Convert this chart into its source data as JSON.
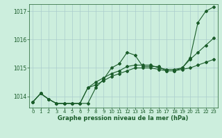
{
  "title": "Graphe pression niveau de la mer (hPa)",
  "bg_color": "#cceedd",
  "grid_color": "#aacccc",
  "line_color": "#1a5c2a",
  "xlim": [
    -0.5,
    23.5
  ],
  "ylim": [
    1013.6,
    1017.25
  ],
  "yticks": [
    1014,
    1015,
    1016,
    1017
  ],
  "xticks": [
    0,
    1,
    2,
    3,
    4,
    5,
    6,
    7,
    8,
    9,
    10,
    11,
    12,
    13,
    14,
    15,
    16,
    17,
    18,
    19,
    20,
    21,
    22,
    23
  ],
  "series1_x": [
    0,
    1,
    2,
    3,
    4,
    5,
    6,
    7,
    8,
    9,
    10,
    11,
    12,
    13,
    14,
    15,
    16,
    17,
    18,
    19,
    20,
    21,
    22,
    23
  ],
  "series1_y": [
    1013.8,
    1014.1,
    1013.9,
    1013.75,
    1013.75,
    1013.75,
    1013.75,
    1013.75,
    1014.3,
    1014.6,
    1015.0,
    1015.15,
    1015.55,
    1015.45,
    1015.05,
    1015.05,
    1015.05,
    1014.9,
    1014.9,
    1015.0,
    1015.35,
    1016.6,
    1017.0,
    1017.15
  ],
  "series2_x": [
    0,
    1,
    2,
    3,
    4,
    5,
    6,
    7,
    8,
    9,
    10,
    11,
    12,
    13,
    14,
    15,
    16,
    17,
    18,
    19,
    20,
    21,
    22,
    23
  ],
  "series2_y": [
    1013.8,
    1014.1,
    1013.9,
    1013.75,
    1013.75,
    1013.75,
    1013.75,
    1014.3,
    1014.5,
    1014.65,
    1014.8,
    1014.9,
    1015.05,
    1015.1,
    1015.1,
    1015.1,
    1015.0,
    1014.95,
    1014.95,
    1015.0,
    1015.3,
    1015.55,
    1015.8,
    1016.05
  ],
  "series3_x": [
    0,
    1,
    2,
    3,
    4,
    5,
    6,
    7,
    8,
    9,
    10,
    11,
    12,
    13,
    14,
    15,
    16,
    17,
    18,
    19,
    20,
    21,
    22,
    23
  ],
  "series3_y": [
    1013.8,
    1014.1,
    1013.9,
    1013.75,
    1013.75,
    1013.75,
    1013.75,
    1014.3,
    1014.4,
    1014.55,
    1014.7,
    1014.8,
    1014.9,
    1015.0,
    1015.0,
    1015.0,
    1014.95,
    1014.9,
    1014.9,
    1014.95,
    1015.0,
    1015.1,
    1015.2,
    1015.3
  ],
  "marker": "D",
  "markersize": 2.0,
  "linewidth": 0.8,
  "title_fontsize": 6.0,
  "tick_fontsize": 5.0
}
